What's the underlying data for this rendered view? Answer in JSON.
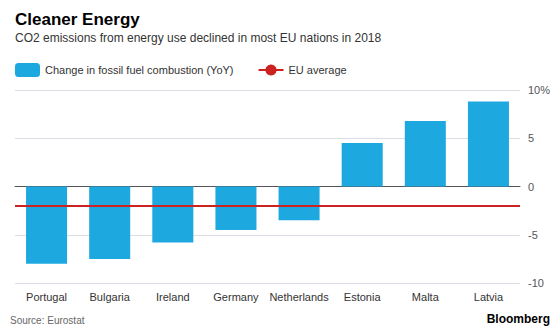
{
  "chart_data": {
    "type": "bar",
    "title": "Cleaner Energy",
    "subtitle": "CO2 emissions from energy use declined in most EU nations in 2018",
    "source": "Source: Eurostat",
    "watermark": "Bloomberg",
    "categories": [
      "Portugal",
      "Bulgaria",
      "Ireland",
      "Germany",
      "Netherlands",
      "Estonia",
      "Malta",
      "Latvia"
    ],
    "series": [
      {
        "name": "Change in fossil fuel combustion (YoY)",
        "type": "bar",
        "color": "#1EA8E0",
        "values": [
          -8.0,
          -7.5,
          -5.8,
          -4.5,
          -3.5,
          4.5,
          6.8,
          8.8
        ]
      }
    ],
    "reference_lines": [
      {
        "name": "EU average",
        "value": -2.0,
        "color": "#CC2222"
      }
    ],
    "ylim": [
      -10,
      10
    ],
    "yticks": [
      -10,
      -5,
      0,
      5,
      {
        "value": 10,
        "label": "10%"
      }
    ],
    "grid": true,
    "legend": "top"
  }
}
